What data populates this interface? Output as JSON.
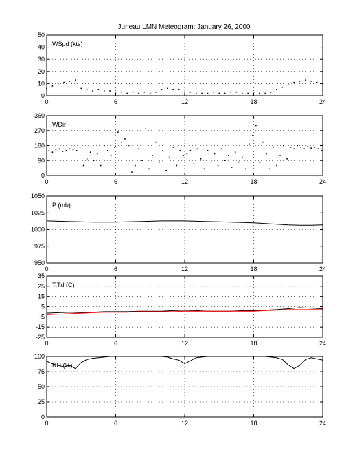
{
  "title": "Juneau LMN Meteogram:   January 26, 2000",
  "chart_data": [
    {
      "type": "scatter",
      "label": "WSpd (kts)",
      "xlim": [
        0,
        24
      ],
      "ylim": [
        0,
        50
      ],
      "xticks": [
        0,
        6,
        12,
        18,
        24
      ],
      "yticks": [
        0,
        10,
        20,
        30,
        40,
        50
      ],
      "grid": true,
      "series": [
        {
          "color": "#000000",
          "x": [
            0,
            0.5,
            1,
            1.5,
            2,
            2.5,
            3,
            3.5,
            4,
            4.5,
            5,
            5.5,
            6,
            6.5,
            7,
            7.5,
            8,
            8.5,
            9,
            9.5,
            10,
            10.5,
            11,
            11.5,
            12,
            12.5,
            13,
            13.5,
            14,
            14.5,
            15,
            15.5,
            16,
            16.5,
            17,
            17.5,
            18,
            18.5,
            19,
            19.5,
            20,
            20.5,
            21,
            21.5,
            22,
            22.5,
            23,
            23.5,
            24
          ],
          "y": [
            6,
            8,
            10,
            11,
            12,
            13,
            6,
            5,
            4,
            5,
            4,
            4,
            3,
            3,
            2,
            3,
            2,
            3,
            2,
            3,
            5,
            6,
            5,
            5,
            3,
            3,
            2,
            2,
            2,
            3,
            2,
            2,
            3,
            3,
            2,
            2,
            3,
            2,
            2,
            3,
            5,
            7,
            9,
            11,
            12,
            13,
            12,
            11,
            10
          ]
        }
      ]
    },
    {
      "type": "scatter",
      "label": "WDir",
      "xlim": [
        0,
        24
      ],
      "ylim": [
        0,
        360
      ],
      "xticks": [
        0,
        6,
        12,
        18,
        24
      ],
      "yticks": [
        0,
        90,
        180,
        270,
        360
      ],
      "grid": true,
      "series": [
        {
          "color": "#000000",
          "x": [
            0.2,
            0.5,
            0.8,
            1.1,
            1.4,
            1.7,
            2.0,
            2.3,
            2.6,
            2.9,
            3.2,
            3.5,
            3.8,
            4.1,
            4.4,
            4.7,
            5.0,
            5.3,
            5.6,
            5.9,
            6.2,
            6.5,
            6.8,
            7.1,
            7.4,
            7.7,
            8.0,
            8.3,
            8.6,
            8.9,
            9.2,
            9.5,
            9.8,
            10.1,
            10.4,
            10.7,
            11.0,
            11.3,
            11.6,
            11.9,
            12.2,
            12.5,
            12.8,
            13.1,
            13.4,
            13.7,
            14.0,
            14.3,
            14.6,
            14.9,
            15.2,
            15.5,
            15.8,
            16.1,
            16.4,
            16.7,
            17.0,
            17.3,
            17.6,
            17.9,
            18.2,
            18.5,
            18.8,
            19.1,
            19.4,
            19.7,
            20.0,
            20.3,
            20.6,
            20.9,
            21.2,
            21.5,
            21.8,
            22.1,
            22.4,
            22.7,
            23.0,
            23.3,
            23.6,
            23.9
          ],
          "y": [
            150,
            140,
            155,
            160,
            145,
            150,
            160,
            155,
            150,
            170,
            60,
            100,
            140,
            90,
            130,
            60,
            180,
            150,
            120,
            170,
            260,
            200,
            220,
            180,
            20,
            60,
            160,
            90,
            280,
            40,
            120,
            200,
            80,
            150,
            30,
            110,
            170,
            60,
            150,
            120,
            130,
            150,
            70,
            160,
            100,
            40,
            150,
            80,
            130,
            60,
            160,
            90,
            120,
            50,
            140,
            80,
            110,
            40,
            190,
            240,
            300,
            80,
            200,
            130,
            40,
            170,
            60,
            120,
            180,
            100,
            170,
            160,
            180,
            170,
            160,
            175,
            165,
            170,
            160,
            150
          ]
        }
      ]
    },
    {
      "type": "line",
      "label": "P (mb)",
      "xlim": [
        0,
        24
      ],
      "ylim": [
        950,
        1050
      ],
      "xticks": [
        0,
        6,
        12,
        18,
        24
      ],
      "yticks": [
        950,
        975,
        1000,
        1025,
        1050
      ],
      "grid": true,
      "series": [
        {
          "color": "#000000",
          "x": [
            0,
            1,
            2,
            3,
            4,
            5,
            6,
            7,
            8,
            9,
            10,
            11,
            12,
            13,
            14,
            15,
            16,
            17,
            18,
            19,
            20,
            21,
            22,
            23,
            24
          ],
          "y": [
            1013,
            1012.5,
            1012,
            1011.5,
            1011,
            1011,
            1011,
            1011.5,
            1012,
            1012.5,
            1013,
            1013,
            1013,
            1012.5,
            1012,
            1011.5,
            1011,
            1010.5,
            1010,
            1009,
            1008,
            1007,
            1006.5,
            1006.5,
            1007
          ]
        }
      ]
    },
    {
      "type": "line",
      "label": "T,Td (C)",
      "xlim": [
        0,
        24
      ],
      "ylim": [
        -25,
        35
      ],
      "xticks": [
        0,
        6,
        12,
        18,
        24
      ],
      "yticks": [
        -25,
        -15,
        -5,
        5,
        15,
        25,
        35
      ],
      "grid": true,
      "series": [
        {
          "color": "#000000",
          "x": [
            0,
            1,
            2,
            3,
            4,
            5,
            6,
            7,
            8,
            9,
            10,
            11,
            12,
            13,
            14,
            15,
            16,
            17,
            18,
            19,
            20,
            21,
            22,
            23,
            24
          ],
          "y": [
            -1.5,
            -1,
            -0.5,
            -1,
            -0.5,
            0,
            0,
            0,
            0.5,
            0.5,
            0.5,
            1,
            1.5,
            1,
            0.5,
            0.5,
            0.5,
            1,
            1,
            1.5,
            2,
            3,
            4,
            3.5,
            3
          ]
        },
        {
          "color": "#ff0000",
          "x": [
            0,
            1,
            2,
            3,
            4,
            5,
            6,
            7,
            8,
            9,
            10,
            11,
            12,
            13,
            14,
            15,
            16,
            17,
            18,
            19,
            20,
            21,
            22,
            23,
            24
          ],
          "y": [
            -3,
            -2.5,
            -2,
            -1.5,
            -1,
            -0.5,
            -0.5,
            -0.5,
            0,
            0,
            0,
            0,
            0.5,
            0.5,
            0.5,
            0.5,
            0.5,
            0.5,
            0.5,
            1,
            1.5,
            2,
            2,
            2,
            2
          ]
        }
      ]
    },
    {
      "type": "line",
      "label": "RH (%)",
      "xlim": [
        0,
        24
      ],
      "ylim": [
        0,
        100
      ],
      "xticks": [
        0,
        6,
        12,
        18,
        24
      ],
      "yticks": [
        0,
        25,
        50,
        75,
        100
      ],
      "grid": true,
      "series": [
        {
          "color": "#000000",
          "x": [
            0,
            0.5,
            1,
            1.5,
            2,
            2.5,
            3,
            3.5,
            4,
            4.5,
            5,
            5.5,
            6,
            6.5,
            7,
            7.5,
            8,
            8.5,
            9,
            9.5,
            10,
            10.5,
            11,
            11.5,
            12,
            12.5,
            13,
            13.5,
            14,
            14.5,
            15,
            15.5,
            16,
            16.5,
            17,
            17.5,
            18,
            18.5,
            19,
            19.5,
            20,
            20.5,
            21,
            21.5,
            22,
            22.5,
            23,
            23.5,
            24
          ],
          "y": [
            92,
            88,
            85,
            83,
            85,
            80,
            90,
            95,
            97,
            98,
            99,
            100,
            100,
            100,
            100,
            100,
            100,
            100,
            100,
            100,
            100,
            99,
            96,
            94,
            88,
            93,
            98,
            99,
            100,
            100,
            100,
            100,
            100,
            100,
            100,
            100,
            100,
            100,
            100,
            99,
            98,
            95,
            86,
            80,
            85,
            95,
            98,
            96,
            94
          ]
        }
      ]
    }
  ]
}
